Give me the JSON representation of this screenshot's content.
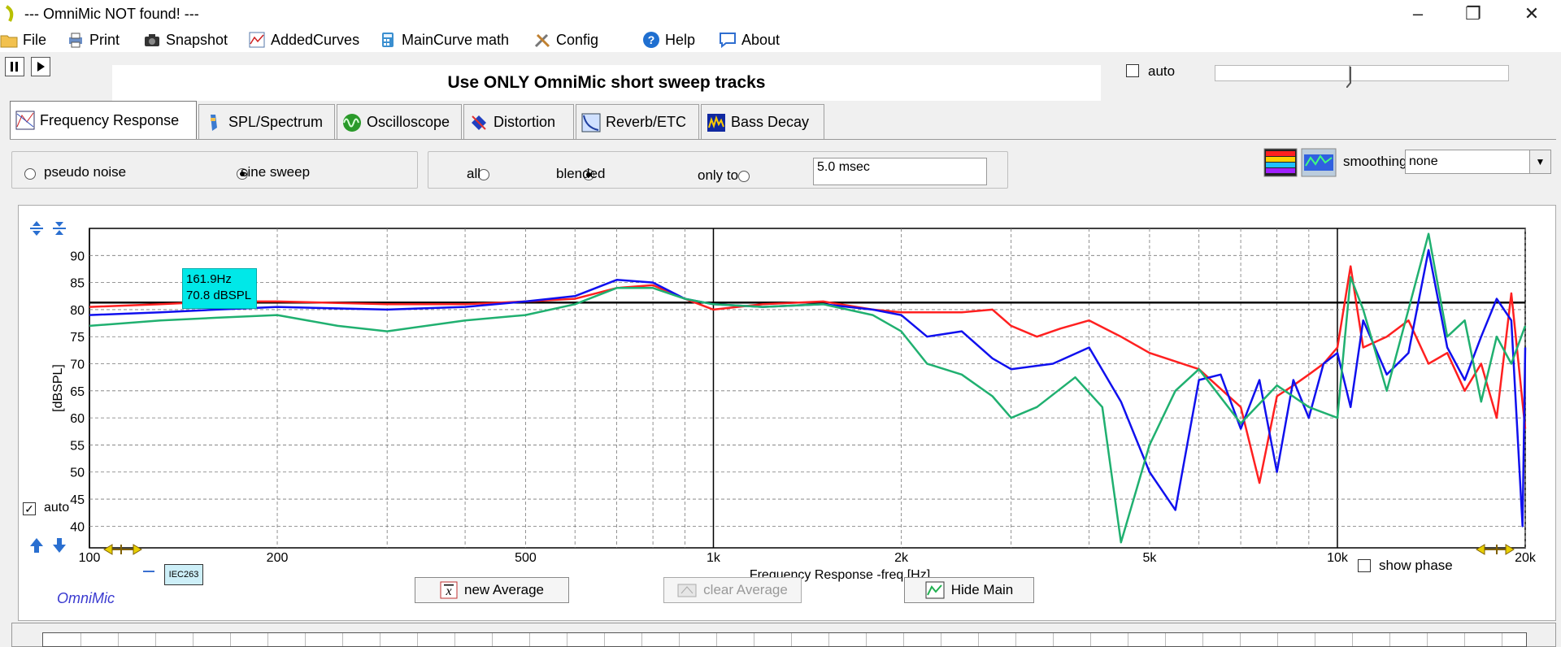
{
  "window": {
    "title": "--- OmniMic NOT found! ---",
    "controls": [
      "–",
      "❐",
      "✕"
    ]
  },
  "menu": {
    "items": [
      {
        "label": "File",
        "icon": "folder-icon"
      },
      {
        "label": "Print",
        "icon": "printer-icon"
      },
      {
        "label": "Snapshot",
        "icon": "camera-icon"
      },
      {
        "label": "AddedCurves",
        "icon": "curves-icon"
      },
      {
        "label": "MainCurve math",
        "icon": "calculator-icon"
      },
      {
        "label": "Config",
        "icon": "tools-icon"
      },
      {
        "label": "Help",
        "icon": "help-icon"
      },
      {
        "label": "About",
        "icon": "speech-bubble-icon"
      }
    ]
  },
  "banner": {
    "text": "Use ONLY OmniMic short sweep tracks"
  },
  "top_right": {
    "auto_label": "auto"
  },
  "tabs": [
    {
      "label": "Frequency Response",
      "active": true
    },
    {
      "label": "SPL/Spectrum"
    },
    {
      "label": "Oscilloscope"
    },
    {
      "label": "Distortion"
    },
    {
      "label": "Reverb/ETC"
    },
    {
      "label": "Bass Decay"
    }
  ],
  "signal": {
    "options": [
      "pseudo noise",
      "sine sweep"
    ],
    "selected": "sine sweep"
  },
  "gating": {
    "options": [
      "all",
      "blended",
      "only to"
    ],
    "selected": "blended",
    "time_value": "5.0 msec"
  },
  "smoothing": {
    "label": "smoothing",
    "value": "none"
  },
  "tooltip": {
    "line1": "161.9Hz",
    "line2": "70.8 dBSPL"
  },
  "controls": {
    "auto_label": "auto",
    "show_phase_label": "show phase",
    "iec_label": "IEC263",
    "brand": "OmniMic",
    "new_average": "new Average",
    "clear_average": "clear Average",
    "hide_main": "Hide Main"
  },
  "chart_data": {
    "type": "line",
    "xlabel": "Frequency Response -freq [Hz]",
    "ylabel": "[dBSPL]",
    "x_scale": "log",
    "xlim": [
      100,
      20000
    ],
    "ylim": [
      36,
      95
    ],
    "x_tick_labels": [
      {
        "value": 100,
        "label": "100"
      },
      {
        "value": 200,
        "label": "200"
      },
      {
        "value": 500,
        "label": "500"
      },
      {
        "value": 1000,
        "label": "1k"
      },
      {
        "value": 2000,
        "label": "2k"
      },
      {
        "value": 5000,
        "label": "5k"
      },
      {
        "value": 10000,
        "label": "10k"
      },
      {
        "value": 20000,
        "label": "20k"
      }
    ],
    "y_ticks": [
      40,
      45,
      50,
      55,
      60,
      65,
      70,
      75,
      80,
      85,
      90
    ],
    "reference_level": 81.3,
    "grid": true,
    "series": [
      {
        "color": "#ff2020",
        "points": [
          [
            100,
            80.5
          ],
          [
            130,
            81
          ],
          [
            160,
            81.5
          ],
          [
            200,
            81.5
          ],
          [
            300,
            81
          ],
          [
            400,
            81
          ],
          [
            500,
            81.5
          ],
          [
            600,
            82
          ],
          [
            700,
            84
          ],
          [
            800,
            84.5
          ],
          [
            900,
            82
          ],
          [
            1000,
            80
          ],
          [
            1200,
            81
          ],
          [
            1500,
            81.5
          ],
          [
            1800,
            80
          ],
          [
            2000,
            79.5
          ],
          [
            2500,
            79.5
          ],
          [
            2800,
            80
          ],
          [
            3000,
            77
          ],
          [
            3300,
            75
          ],
          [
            3600,
            76.5
          ],
          [
            4000,
            78
          ],
          [
            4500,
            75
          ],
          [
            5000,
            72
          ],
          [
            6000,
            69
          ],
          [
            7000,
            62
          ],
          [
            7500,
            48
          ],
          [
            8000,
            64
          ],
          [
            8500,
            66
          ],
          [
            9000,
            68
          ],
          [
            9500,
            70
          ],
          [
            10000,
            73
          ],
          [
            10500,
            88
          ],
          [
            11000,
            73
          ],
          [
            12000,
            75
          ],
          [
            13000,
            78
          ],
          [
            14000,
            70
          ],
          [
            15000,
            72
          ],
          [
            16000,
            65
          ],
          [
            17000,
            70
          ],
          [
            18000,
            60
          ],
          [
            19000,
            83
          ],
          [
            20000,
            58
          ]
        ]
      },
      {
        "color": "#1010ee",
        "points": [
          [
            100,
            79
          ],
          [
            130,
            79.5
          ],
          [
            160,
            80
          ],
          [
            200,
            80.5
          ],
          [
            300,
            80
          ],
          [
            400,
            80.5
          ],
          [
            500,
            81.5
          ],
          [
            600,
            82.5
          ],
          [
            700,
            85.5
          ],
          [
            800,
            85
          ],
          [
            900,
            82
          ],
          [
            1000,
            81
          ],
          [
            1200,
            80.5
          ],
          [
            1500,
            81
          ],
          [
            1800,
            80
          ],
          [
            2000,
            79
          ],
          [
            2200,
            75
          ],
          [
            2500,
            76
          ],
          [
            2800,
            71
          ],
          [
            3000,
            69
          ],
          [
            3500,
            70
          ],
          [
            4000,
            73
          ],
          [
            4500,
            63
          ],
          [
            5000,
            50
          ],
          [
            5500,
            43
          ],
          [
            6000,
            67
          ],
          [
            6500,
            68
          ],
          [
            7000,
            58
          ],
          [
            7500,
            67
          ],
          [
            8000,
            50
          ],
          [
            8500,
            67
          ],
          [
            9000,
            60
          ],
          [
            9500,
            70
          ],
          [
            10000,
            72
          ],
          [
            10500,
            62
          ],
          [
            11000,
            78
          ],
          [
            12000,
            68
          ],
          [
            13000,
            72
          ],
          [
            14000,
            91
          ],
          [
            15000,
            73
          ],
          [
            16000,
            67
          ],
          [
            17000,
            75
          ],
          [
            18000,
            82
          ],
          [
            19000,
            78
          ],
          [
            19800,
            40
          ],
          [
            20000,
            73
          ]
        ]
      },
      {
        "color": "#20b070",
        "points": [
          [
            100,
            77
          ],
          [
            130,
            78
          ],
          [
            160,
            78.5
          ],
          [
            200,
            79
          ],
          [
            250,
            77
          ],
          [
            300,
            76
          ],
          [
            400,
            78
          ],
          [
            500,
            79
          ],
          [
            600,
            81
          ],
          [
            700,
            84
          ],
          [
            800,
            84
          ],
          [
            900,
            82
          ],
          [
            1000,
            81
          ],
          [
            1200,
            80.5
          ],
          [
            1500,
            81
          ],
          [
            1800,
            79
          ],
          [
            2000,
            76
          ],
          [
            2200,
            70
          ],
          [
            2500,
            68
          ],
          [
            2800,
            64
          ],
          [
            3000,
            60
          ],
          [
            3300,
            62
          ],
          [
            3800,
            67.5
          ],
          [
            4200,
            62
          ],
          [
            4500,
            37
          ],
          [
            5000,
            55
          ],
          [
            5500,
            65
          ],
          [
            6000,
            69
          ],
          [
            7000,
            59
          ],
          [
            8000,
            66
          ],
          [
            9000,
            62
          ],
          [
            10000,
            60
          ],
          [
            10500,
            86
          ],
          [
            11000,
            80
          ],
          [
            12000,
            65
          ],
          [
            13000,
            80
          ],
          [
            14000,
            94
          ],
          [
            15000,
            75
          ],
          [
            16000,
            78
          ],
          [
            17000,
            63
          ],
          [
            18000,
            75
          ],
          [
            19000,
            70
          ],
          [
            20000,
            77
          ]
        ]
      }
    ]
  }
}
